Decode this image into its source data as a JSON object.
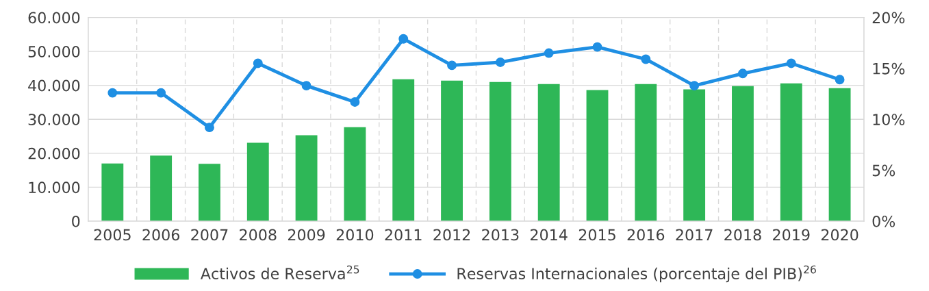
{
  "chart_data": {
    "type": "bar",
    "categories": [
      "2005",
      "2006",
      "2007",
      "2008",
      "2009",
      "2010",
      "2011",
      "2012",
      "2013",
      "2014",
      "2015",
      "2016",
      "2017",
      "2018",
      "2019",
      "2020"
    ],
    "series": [
      {
        "name": "Activos de Reserva$^{25}$",
        "color": "#2eb757",
        "values": [
          17000,
          19300,
          16900,
          23100,
          25300,
          27700,
          41800,
          41400,
          41000,
          40400,
          38600,
          40400,
          38800,
          39800,
          40600,
          39200
        ]
      },
      {
        "name": "Reservas Internacionales (porcentaje del PIB)$^{26}$",
        "type": "line",
        "axis": "y2",
        "color": "#1f8fe3",
        "marker": "circle",
        "values": [
          12.6,
          12.6,
          9.2,
          15.5,
          13.3,
          11.7,
          17.9,
          15.3,
          15.6,
          16.5,
          17.1,
          15.9,
          13.3,
          14.5,
          15.5,
          13.9
        ]
      }
    ],
    "ylim": [
      0,
      60000
    ],
    "yticks": [
      0,
      {
        "value": 10000,
        "label": "10.000"
      },
      {
        "value": 20000,
        "label": "20.000"
      },
      {
        "value": 30000,
        "label": "30.000"
      },
      {
        "value": 40000,
        "label": "40.000"
      },
      {
        "value": 50000,
        "label": "50.000"
      },
      {
        "value": 60000,
        "label": "60.000"
      }
    ],
    "y2lim": [
      0,
      20
    ],
    "y2ticks": [
      {
        "value": 0,
        "label": "0%"
      },
      {
        "value": 5,
        "label": "5%"
      },
      {
        "value": 10,
        "label": "10%"
      },
      {
        "value": 15,
        "label": "15%"
      },
      {
        "value": 20,
        "label": "20%"
      }
    ],
    "grid": true,
    "legend": "bottom"
  }
}
